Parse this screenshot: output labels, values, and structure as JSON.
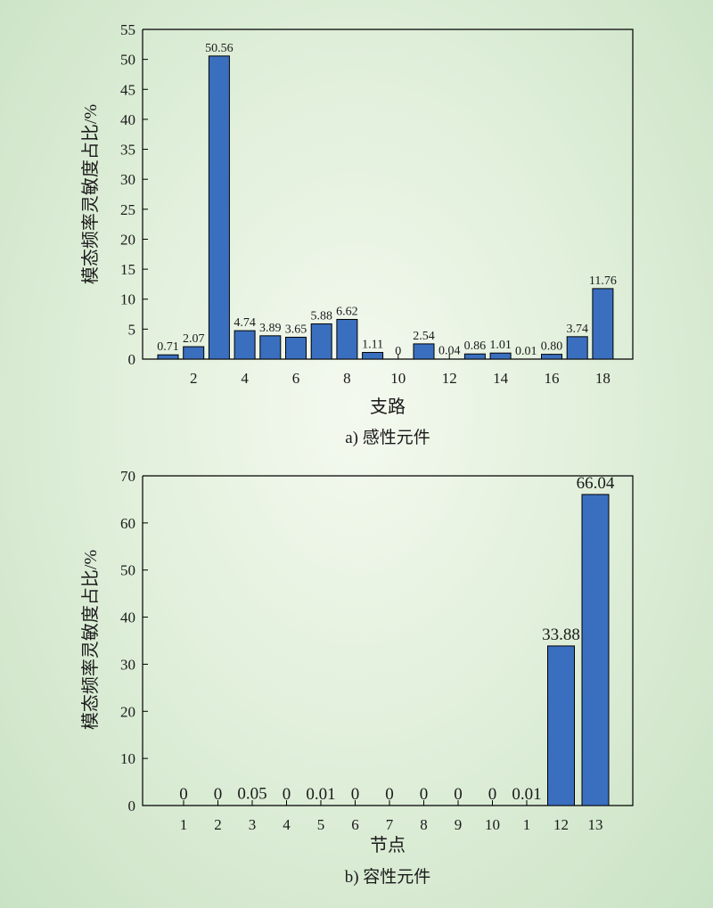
{
  "chart_data": [
    {
      "type": "bar",
      "caption": "a) 感性元件",
      "xlabel": "支路",
      "ylabel": "模态频率灵敏度占比/%",
      "ylim": [
        0,
        55
      ],
      "yticks": [
        0,
        5,
        10,
        15,
        20,
        25,
        30,
        35,
        40,
        45,
        50,
        55
      ],
      "x": [
        1,
        2,
        3,
        4,
        5,
        6,
        7,
        8,
        9,
        10,
        11,
        12,
        13,
        14,
        15,
        16,
        17,
        18
      ],
      "xtick_labels": [
        "2",
        "4",
        "6",
        "8",
        "10",
        "12",
        "14",
        "16",
        "18"
      ],
      "values": [
        0.71,
        2.07,
        50.56,
        4.74,
        3.89,
        3.65,
        5.88,
        6.62,
        1.11,
        0,
        2.54,
        0.04,
        0.86,
        1.01,
        0.01,
        0.8,
        3.74,
        11.76
      ],
      "value_labels": [
        "0.71",
        "2.07",
        "50.56",
        "4.74",
        "3.89",
        "3.65",
        "5.88",
        "6.62",
        "1.11",
        "0",
        "2.54",
        "0.04",
        "0.86",
        "1.01",
        "0.01",
        "0.80",
        "3.74",
        "11.76"
      ],
      "color": "#3a6fbf"
    },
    {
      "type": "bar",
      "caption": "b) 容性元件",
      "xlabel": "节点",
      "ylabel": "模态频率灵敏度占比/%",
      "ylim": [
        0,
        70
      ],
      "yticks": [
        0,
        10,
        20,
        30,
        40,
        50,
        60,
        70
      ],
      "categories": [
        "1",
        "2",
        "3",
        "4",
        "5",
        "6",
        "7",
        "8",
        "9",
        "10",
        "1",
        "12",
        "13"
      ],
      "values": [
        0,
        0,
        0.05,
        0,
        0.01,
        0,
        0,
        0,
        0,
        0,
        0.01,
        33.88,
        66.04
      ],
      "value_labels": [
        "0",
        "0",
        "0.05",
        "0",
        "0.01",
        "0",
        "0",
        "0",
        "0",
        "0",
        "0.01",
        "33.88",
        "66.04"
      ],
      "color": "#3a6fbf"
    }
  ]
}
